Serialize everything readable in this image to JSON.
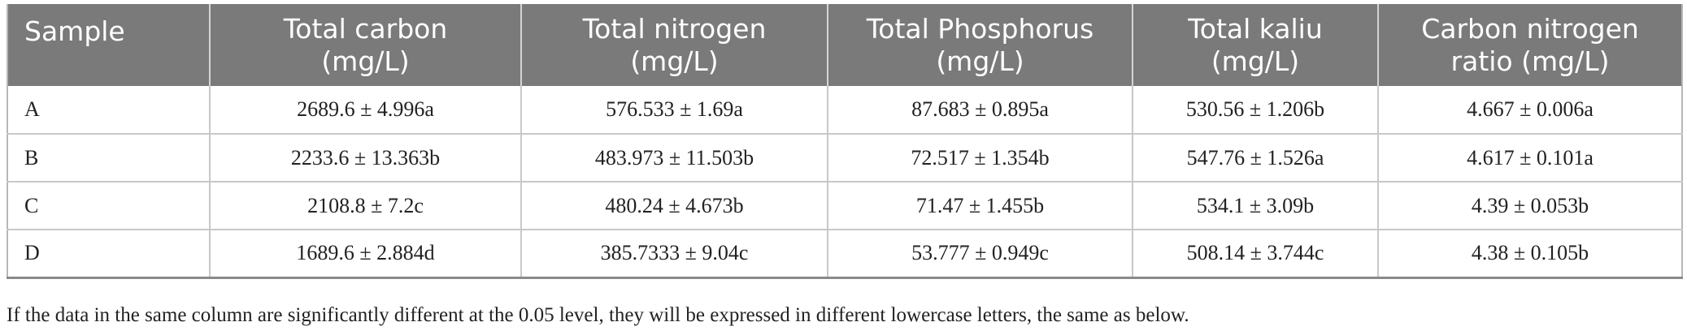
{
  "table": {
    "headers": [
      {
        "line1": "Sample",
        "line2": ""
      },
      {
        "line1": "Total carbon",
        "line2": "(mg/L)"
      },
      {
        "line1": "Total nitrogen",
        "line2": "(mg/L)"
      },
      {
        "line1": "Total Phosphorus",
        "line2": "(mg/L)"
      },
      {
        "line1": "Total kaliu",
        "line2": "(mg/L)"
      },
      {
        "line1": "Carbon nitrogen",
        "line2": "ratio (mg/L)"
      }
    ],
    "rows": [
      {
        "sample": "A",
        "total_carbon": "2689.6 ± 4.996a",
        "total_nitrogen": "576.533 ± 1.69a",
        "total_phosphorus": "87.683 ± 0.895a",
        "total_kaliu": "530.56 ± 1.206b",
        "cn_ratio": "4.667 ± 0.006a"
      },
      {
        "sample": "B",
        "total_carbon": "2233.6 ± 13.363b",
        "total_nitrogen": "483.973 ± 11.503b",
        "total_phosphorus": "72.517 ± 1.354b",
        "total_kaliu": "547.76 ± 1.526a",
        "cn_ratio": "4.617 ± 0.101a"
      },
      {
        "sample": "C",
        "total_carbon": "2108.8 ± 7.2c",
        "total_nitrogen": "480.24 ± 4.673b",
        "total_phosphorus": "71.47 ± 1.455b",
        "total_kaliu": "534.1 ± 3.09b",
        "cn_ratio": "4.39 ± 0.053b"
      },
      {
        "sample": "D",
        "total_carbon": "1689.6 ± 2.884d",
        "total_nitrogen": "385.7333 ± 9.04c",
        "total_phosphorus": "53.777 ± 0.949c",
        "total_kaliu": "508.14 ± 3.744c",
        "cn_ratio": "4.38 ± 0.105b"
      }
    ]
  },
  "footnote": "If the data in the same column are significantly different at the 0.05 level, they will be expressed in different lowercase letters, the same as below.",
  "colors": {
    "header_bg": "#7a7a7a",
    "header_text": "#ffffff",
    "grid_line": "#c8c8c8"
  }
}
